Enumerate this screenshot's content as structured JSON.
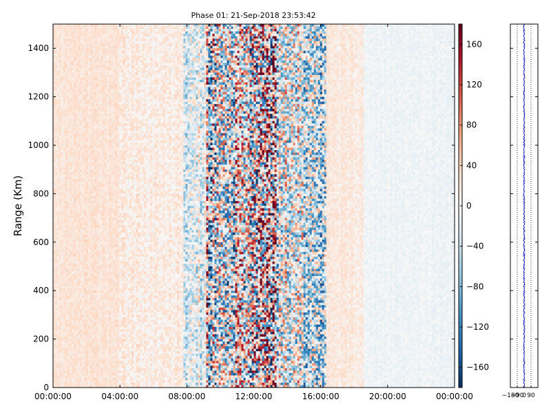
{
  "chart_data": [
    {
      "type": "heatmap",
      "title": "Phase 01: 21-Sep-2018 23:53:42",
      "xlabel": "",
      "ylabel": "Range (Km)",
      "x_ticks": [
        "00:00:00",
        "04:00:00",
        "08:00:00",
        "12:00:00",
        "16:00:00",
        "20:00:00",
        "00:00:00"
      ],
      "x_range_hours": [
        0,
        24
      ],
      "ylim": [
        0,
        1500
      ],
      "y_ticks": [
        0,
        200,
        400,
        600,
        800,
        1000,
        1200,
        1400
      ],
      "colormap": "RdBu_r",
      "colorbar": {
        "range": [
          -180,
          180
        ],
        "ticks": [
          160,
          120,
          80,
          40,
          0,
          -40,
          -80,
          -120,
          -160
        ],
        "tick_labels": [
          "160",
          "120",
          "80",
          "40",
          "0",
          "−40",
          "−80",
          "−120",
          "−160"
        ]
      },
      "regions": [
        {
          "from_hour": 0.0,
          "to_hour": 4.0,
          "mean_phase": 25,
          "spread": 12
        },
        {
          "from_hour": 4.0,
          "to_hour": 7.8,
          "mean_phase": 15,
          "spread": 20
        },
        {
          "from_hour": 7.8,
          "to_hour": 9.2,
          "mean_phase": -15,
          "spread": 60
        },
        {
          "from_hour": 9.2,
          "to_hour": 11.7,
          "mean_phase": 0,
          "spread": 140
        },
        {
          "from_hour": 11.7,
          "to_hour": 13.4,
          "mean_phase": 0,
          "spread": 180
        },
        {
          "from_hour": 13.4,
          "to_hour": 16.3,
          "mean_phase": -20,
          "spread": 110
        },
        {
          "from_hour": 16.3,
          "to_hour": 18.5,
          "mean_phase": 18,
          "spread": 14
        },
        {
          "from_hour": 18.5,
          "to_hour": 24.0,
          "mean_phase": -8,
          "spread": 8
        }
      ]
    },
    {
      "type": "line",
      "ylim": [
        0,
        1500
      ],
      "xlim": [
        -180,
        180
      ],
      "x_ticks": [
        -180,
        -90,
        0,
        90
      ],
      "x_tick_labels": [
        "−180",
        "−90",
        "0",
        "90"
      ],
      "grid": "vertical-dotted",
      "series_color": "#0000cc",
      "mean_phase": 0,
      "spread": 10
    }
  ],
  "colors": {
    "axis": "#000000",
    "line": "#0000cc"
  }
}
